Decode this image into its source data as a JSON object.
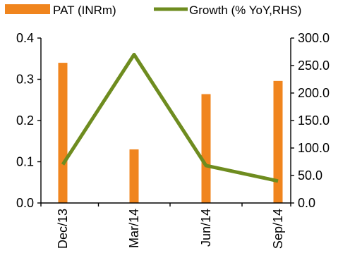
{
  "chart_data": {
    "type": "bar+line",
    "categories": [
      "Dec/13",
      "Mar/14",
      "Jun/14",
      "Sep/14"
    ],
    "series": [
      {
        "name": "PAT (INRm)",
        "type": "bar",
        "axis": "left",
        "values": [
          0.34,
          0.13,
          0.264,
          0.296
        ]
      },
      {
        "name": "Growth (% YoY,RHS)",
        "type": "line",
        "axis": "right",
        "values": [
          70,
          270,
          68,
          40
        ]
      }
    ],
    "y_left": {
      "range": [
        0,
        0.4
      ],
      "ticks": [
        0,
        0.1,
        0.2,
        0.3,
        0.4
      ],
      "tick_labels": [
        "0.0",
        "0.1",
        "0.2",
        "0.3",
        "0.4"
      ]
    },
    "y_right": {
      "range": [
        0,
        300
      ],
      "ticks": [
        0,
        50,
        100,
        150,
        200,
        250,
        300
      ],
      "tick_labels": [
        "0.0",
        "50.0",
        "100.0",
        "150.0",
        "200.0",
        "250.0",
        "300.0"
      ]
    },
    "grid": false,
    "legend_position": "top",
    "colors": {
      "bar": "#F0851E",
      "line": "#6E8C1F",
      "axis": "#000000"
    }
  }
}
